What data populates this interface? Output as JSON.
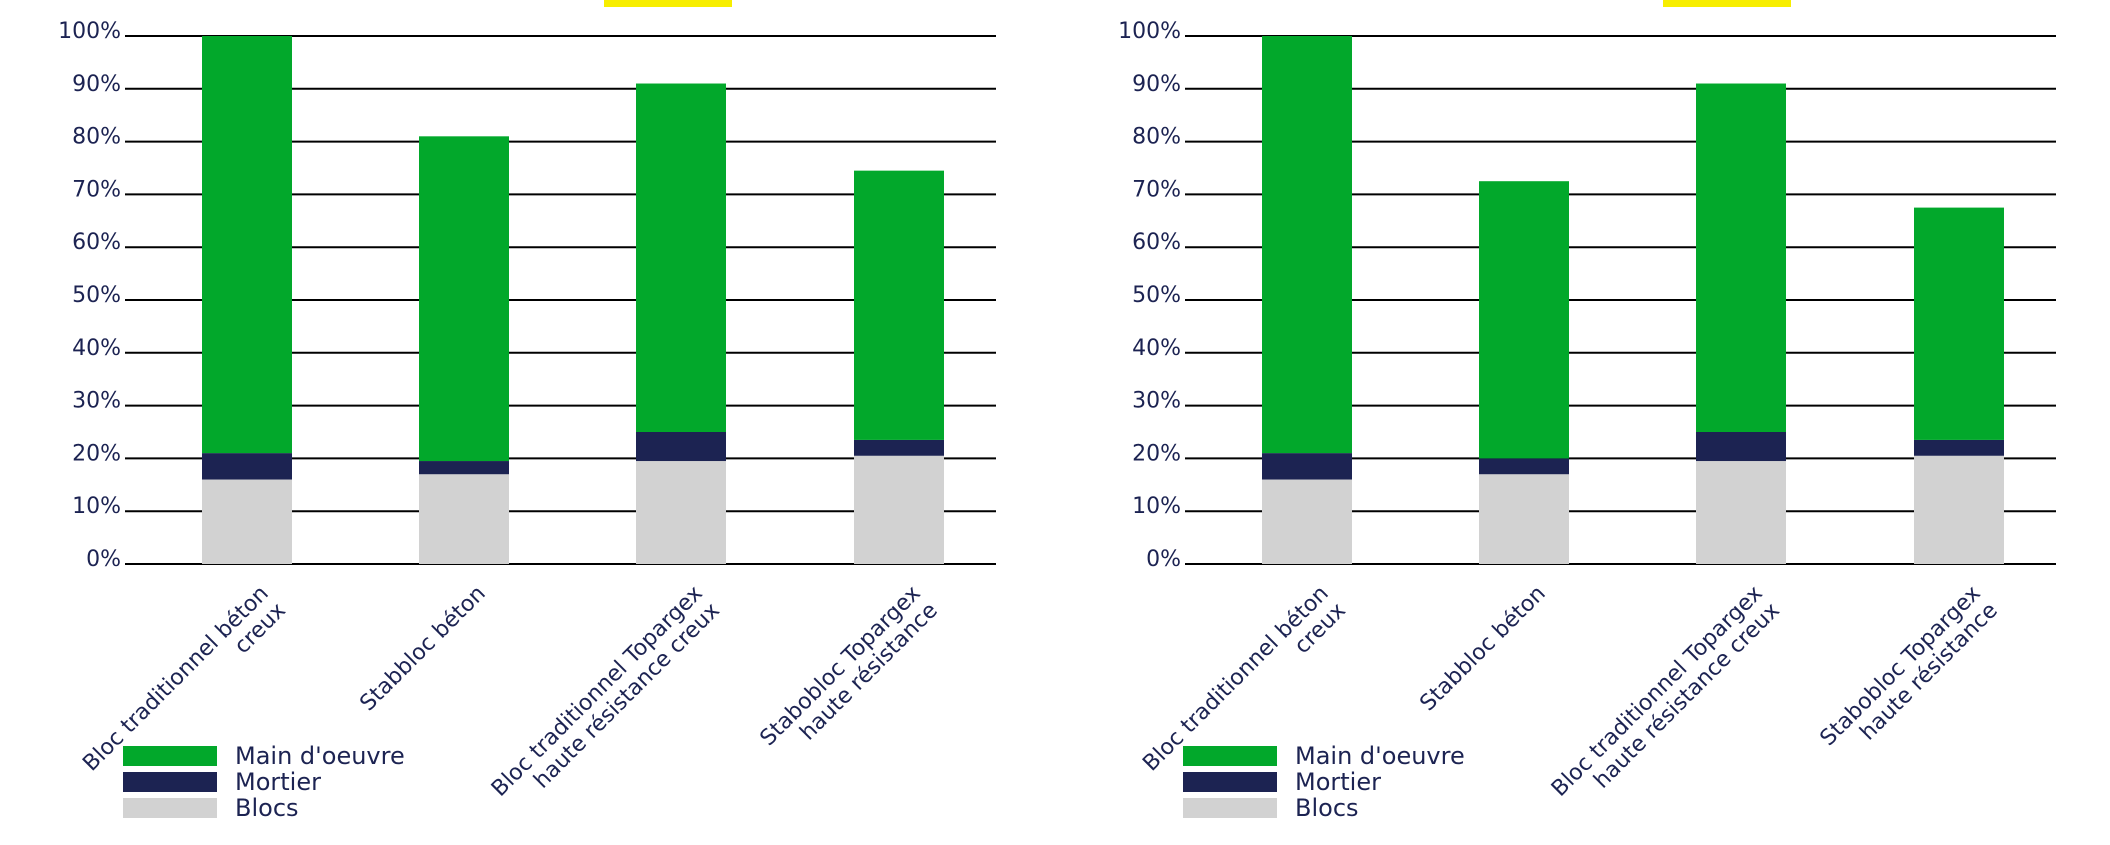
{
  "colors": {
    "main_oeuvre": "#02a82b",
    "mortier": "#1c2352",
    "blocs": "#d2d2d2",
    "text": "#1c2352",
    "highlight": "#f7ee00",
    "axis": "#000000"
  },
  "chart_data": [
    {
      "type": "bar",
      "stacked": true,
      "title": "",
      "xlabel": "",
      "ylabel": "",
      "ylim": [
        0,
        100
      ],
      "y_ticks": [
        "0%",
        "10%",
        "20%",
        "30%",
        "40%",
        "50%",
        "60%",
        "70%",
        "80%",
        "90%",
        "100%"
      ],
      "categories": [
        [
          "Bloc traditionnel béton",
          "creux"
        ],
        [
          "Stabbloc béton"
        ],
        [
          "Bloc traditionnel Topargex",
          "haute résistance creux"
        ],
        [
          "Stabobloc Topargex",
          "haute résistance"
        ]
      ],
      "series": [
        {
          "name": "Blocs",
          "values": [
            16,
            17,
            19.5,
            20.5
          ]
        },
        {
          "name": "Mortier",
          "values": [
            5,
            2.5,
            5.5,
            3
          ]
        },
        {
          "name": "Main d'oeuvre",
          "values": [
            79,
            61.5,
            66,
            51
          ]
        }
      ],
      "legend": {
        "position": "bottom-left",
        "entries": [
          "Main d'oeuvre",
          "Mortier",
          "Blocs"
        ]
      },
      "grid": true
    },
    {
      "type": "bar",
      "stacked": true,
      "title": "",
      "xlabel": "",
      "ylabel": "",
      "ylim": [
        0,
        100
      ],
      "y_ticks": [
        "0%",
        "10%",
        "20%",
        "30%",
        "40%",
        "50%",
        "60%",
        "70%",
        "80%",
        "90%",
        "100%"
      ],
      "categories": [
        [
          "Bloc traditionnel béton",
          "creux"
        ],
        [
          "Stabbloc béton"
        ],
        [
          "Bloc traditionnel Topargex",
          "haute résistance creux"
        ],
        [
          "Stabobloc Topargex",
          "haute résistance"
        ]
      ],
      "series": [
        {
          "name": "Blocs",
          "values": [
            16,
            17,
            19.5,
            20.5
          ]
        },
        {
          "name": "Mortier",
          "values": [
            5,
            3,
            5.5,
            3
          ]
        },
        {
          "name": "Main d'oeuvre",
          "values": [
            79,
            52.5,
            66,
            44
          ]
        }
      ],
      "legend": {
        "position": "bottom-left",
        "entries": [
          "Main d'oeuvre",
          "Mortier",
          "Blocs"
        ]
      },
      "grid": true
    }
  ]
}
